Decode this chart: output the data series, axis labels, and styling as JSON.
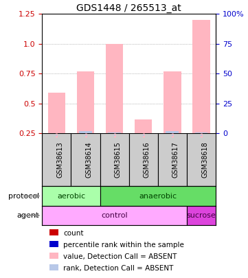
{
  "title": "GDS1448 / 265513_at",
  "samples": [
    "GSM38613",
    "GSM38614",
    "GSM38615",
    "GSM38616",
    "GSM38617",
    "GSM38618"
  ],
  "bar_values": [
    0.59,
    0.77,
    1.0,
    0.37,
    0.77,
    1.2
  ],
  "rank_values": [
    0.25,
    0.27,
    0.26,
    0.25,
    0.27,
    0.26
  ],
  "ylim_left": [
    0.25,
    1.25
  ],
  "ylim_right": [
    0,
    100
  ],
  "yticks_left": [
    0.25,
    0.5,
    0.75,
    1.0,
    1.25
  ],
  "ytick_labels_right": [
    "0",
    "25",
    "50",
    "75",
    "100%"
  ],
  "ytick_vals_right": [
    0,
    25,
    50,
    75,
    100
  ],
  "bar_color": "#ffb6c1",
  "rank_color": "#b8c8e8",
  "left_tick_color": "#cc0000",
  "right_tick_color": "#0000cc",
  "sample_box_color": "#cccccc",
  "protocol_labels": [
    [
      "aerobic",
      0,
      2
    ],
    [
      "anaerobic",
      2,
      6
    ]
  ],
  "protocol_colors": [
    "#aaffaa",
    "#66dd66"
  ],
  "agent_labels": [
    [
      "control",
      0,
      5
    ],
    [
      "sucrose",
      5,
      6
    ]
  ],
  "agent_colors": [
    "#ffaaff",
    "#dd44dd"
  ],
  "legend_items": [
    {
      "color": "#cc0000",
      "label": "count"
    },
    {
      "color": "#0000cc",
      "label": "percentile rank within the sample"
    },
    {
      "color": "#ffb6c1",
      "label": "value, Detection Call = ABSENT"
    },
    {
      "color": "#b8c8e8",
      "label": "rank, Detection Call = ABSENT"
    }
  ],
  "background_color": "#ffffff",
  "grid_color": "#888888",
  "label_color_protocol": "#004400",
  "label_color_agent": "#440044",
  "arrow_color": "#888888"
}
